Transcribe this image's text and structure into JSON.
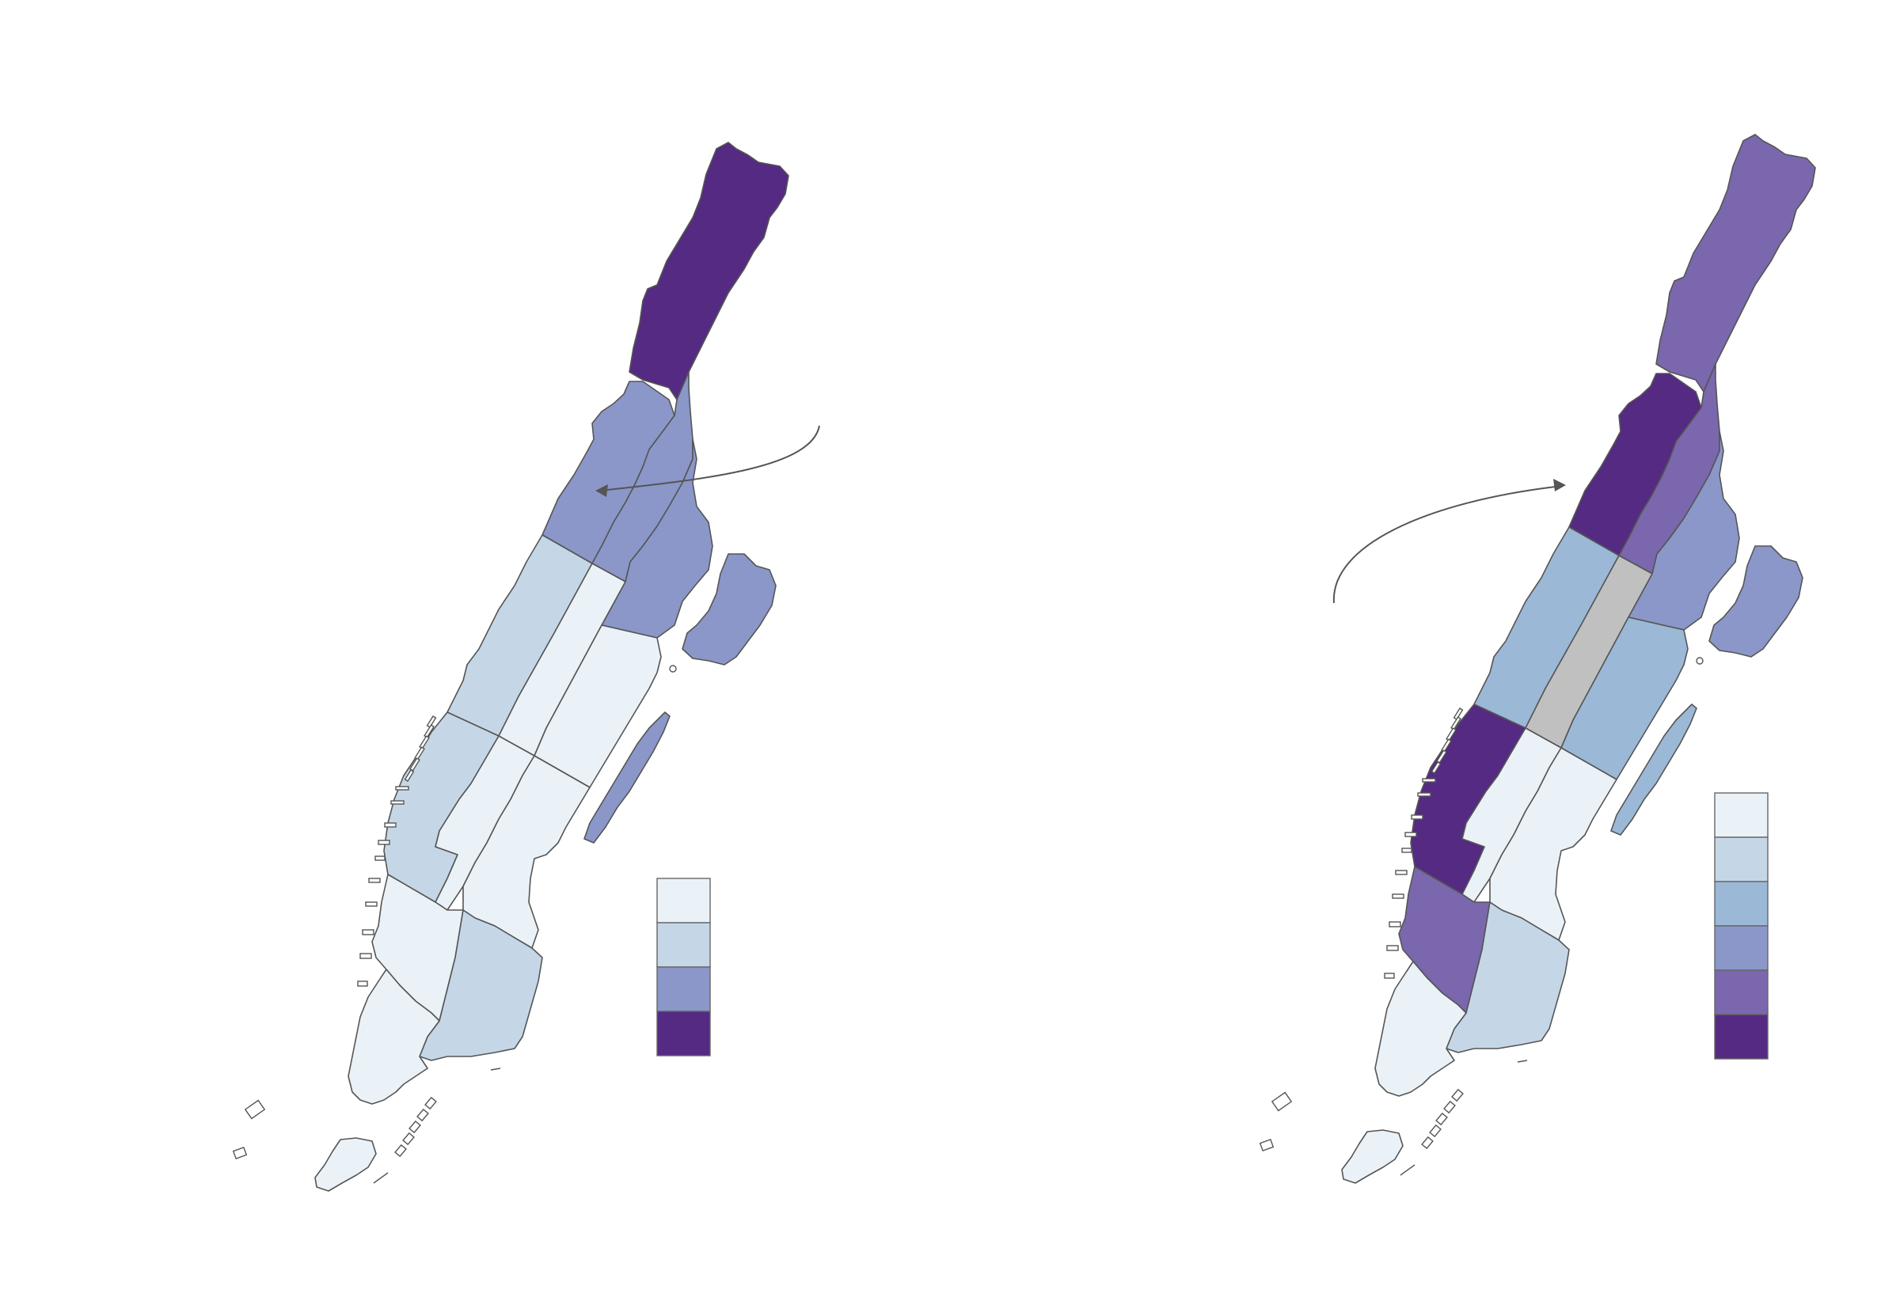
{
  "palette": {
    "c1": "#eaf2f7",
    "c2": "#c5d7e7",
    "c3": "#9bb8d7",
    "c4": "#8a97c8",
    "c5": "#7a67ad",
    "c6": "#552a82",
    "nodata": "#c0c0c0",
    "outline": "#555555"
  },
  "maps": [
    {
      "name": "left-map",
      "legend_classes": [
        "c1",
        "c2",
        "c4",
        "c6"
      ],
      "regions": [
        {
          "id": "inwood-washington-heights",
          "class": "c6"
        },
        {
          "id": "hamilton-heights-morningside",
          "class": "c4"
        },
        {
          "id": "central-harlem",
          "class": "c4"
        },
        {
          "id": "east-harlem",
          "class": "c4"
        },
        {
          "id": "roosevelt-island",
          "class": "c4"
        },
        {
          "id": "randalls-island",
          "class": "c4"
        },
        {
          "id": "upper-west-side",
          "class": "c2"
        },
        {
          "id": "central-park",
          "class": "c1"
        },
        {
          "id": "upper-east-side",
          "class": "c1"
        },
        {
          "id": "clinton-chelsea",
          "class": "c2"
        },
        {
          "id": "midtown",
          "class": "c1"
        },
        {
          "id": "midtown-east",
          "class": "c1"
        },
        {
          "id": "west-village-soho",
          "class": "c1"
        },
        {
          "id": "east-village-les",
          "class": "c2"
        },
        {
          "id": "financial-district",
          "class": "c1"
        },
        {
          "id": "governors-island",
          "class": "c1"
        }
      ]
    },
    {
      "name": "right-map",
      "legend_classes": [
        "c1",
        "c2",
        "c3",
        "c4",
        "c5",
        "c6"
      ],
      "regions": [
        {
          "id": "inwood-washington-heights",
          "class": "c5"
        },
        {
          "id": "hamilton-heights-morningside",
          "class": "c6"
        },
        {
          "id": "central-harlem",
          "class": "c5"
        },
        {
          "id": "east-harlem",
          "class": "c4"
        },
        {
          "id": "roosevelt-island",
          "class": "c3"
        },
        {
          "id": "randalls-island",
          "class": "c4"
        },
        {
          "id": "upper-west-side",
          "class": "c3"
        },
        {
          "id": "central-park",
          "class": "nodata"
        },
        {
          "id": "upper-east-side",
          "class": "c3"
        },
        {
          "id": "clinton-chelsea",
          "class": "c6"
        },
        {
          "id": "midtown",
          "class": "c1"
        },
        {
          "id": "midtown-east",
          "class": "c1"
        },
        {
          "id": "west-village-soho",
          "class": "c5"
        },
        {
          "id": "east-village-les",
          "class": "c2"
        },
        {
          "id": "financial-district",
          "class": "c1"
        },
        {
          "id": "governors-island",
          "class": "c1"
        }
      ]
    }
  ]
}
